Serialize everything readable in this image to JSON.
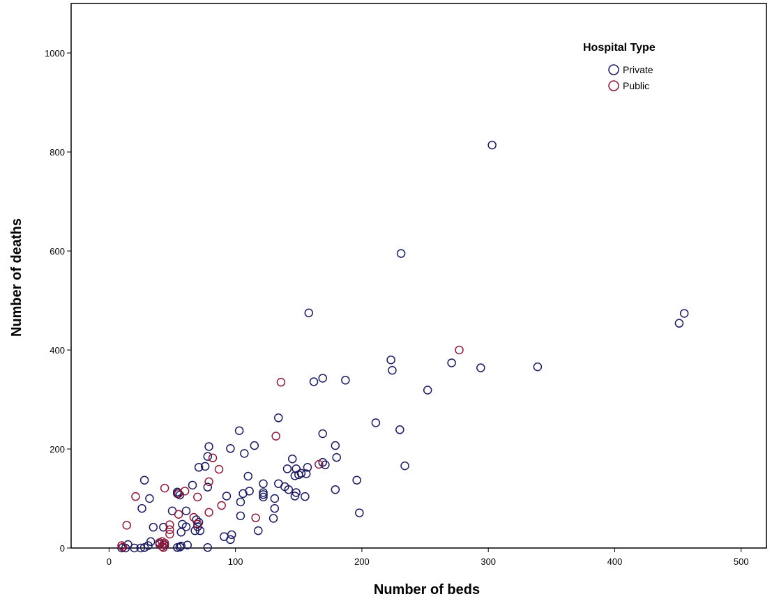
{
  "chart_data": {
    "type": "scatter",
    "title": "",
    "xlabel": "Number of beds",
    "ylabel": "Number of deaths",
    "xlim": [
      -30,
      520
    ],
    "ylim": [
      0,
      1100
    ],
    "x_ticks": [
      0,
      100,
      200,
      300,
      400,
      500
    ],
    "y_ticks": [
      0,
      200,
      400,
      600,
      800,
      1000
    ],
    "grid": false,
    "legend": {
      "title": "Hospital Type",
      "position": "top-right"
    },
    "series": [
      {
        "name": "Private",
        "color": "#1a1a5e",
        "points": [
          [
            303,
            814
          ],
          [
            231,
            595
          ],
          [
            158,
            475
          ],
          [
            455,
            474
          ],
          [
            451,
            454
          ],
          [
            223,
            380
          ],
          [
            271,
            374
          ],
          [
            294,
            364
          ],
          [
            339,
            366
          ],
          [
            224,
            359
          ],
          [
            169,
            343
          ],
          [
            162,
            336
          ],
          [
            187,
            339
          ],
          [
            252,
            319
          ],
          [
            134,
            263
          ],
          [
            211,
            253
          ],
          [
            103,
            237
          ],
          [
            230,
            239
          ],
          [
            169,
            231
          ],
          [
            115,
            207
          ],
          [
            179,
            207
          ],
          [
            79,
            205
          ],
          [
            96,
            201
          ],
          [
            107,
            191
          ],
          [
            78,
            185
          ],
          [
            180,
            183
          ],
          [
            145,
            180
          ],
          [
            71,
            163
          ],
          [
            76,
            165
          ],
          [
            157,
            163
          ],
          [
            141,
            160
          ],
          [
            148,
            160
          ],
          [
            171,
            168
          ],
          [
            169,
            173
          ],
          [
            234,
            166
          ],
          [
            152,
            151
          ],
          [
            150,
            148
          ],
          [
            147,
            146
          ],
          [
            156,
            150
          ],
          [
            110,
            145
          ],
          [
            196,
            137
          ],
          [
            28,
            137
          ],
          [
            66,
            127
          ],
          [
            122,
            130
          ],
          [
            134,
            130
          ],
          [
            139,
            124
          ],
          [
            78,
            123
          ],
          [
            142,
            118
          ],
          [
            179,
            118
          ],
          [
            111,
            115
          ],
          [
            106,
            110
          ],
          [
            122,
            112
          ],
          [
            122,
            108
          ],
          [
            122,
            103
          ],
          [
            148,
            112
          ],
          [
            147,
            105
          ],
          [
            155,
            104
          ],
          [
            131,
            100
          ],
          [
            32,
            100
          ],
          [
            93,
            105
          ],
          [
            104,
            93
          ],
          [
            50,
            75
          ],
          [
            54,
            110
          ],
          [
            54,
            113
          ],
          [
            56,
            107
          ],
          [
            26,
            80
          ],
          [
            131,
            80
          ],
          [
            61,
            75
          ],
          [
            69,
            57
          ],
          [
            71,
            52
          ],
          [
            104,
            65
          ],
          [
            198,
            71
          ],
          [
            130,
            60
          ],
          [
            58,
            48
          ],
          [
            70,
            43
          ],
          [
            35,
            42
          ],
          [
            61,
            43
          ],
          [
            43,
            42
          ],
          [
            68,
            35
          ],
          [
            72,
            35
          ],
          [
            57,
            32
          ],
          [
            118,
            35
          ],
          [
            97,
            27
          ],
          [
            91,
            23
          ],
          [
            96,
            17
          ],
          [
            33,
            13
          ],
          [
            40,
            8
          ],
          [
            44,
            6
          ],
          [
            15,
            7
          ],
          [
            31,
            5
          ],
          [
            57,
            4
          ],
          [
            62,
            6
          ],
          [
            56,
            2
          ],
          [
            78,
            1
          ],
          [
            54,
            1
          ],
          [
            28,
            1
          ],
          [
            25,
            0
          ],
          [
            20,
            0
          ],
          [
            13,
            0
          ],
          [
            10,
            0
          ]
        ]
      },
      {
        "name": "Public",
        "color": "#8b1a3a",
        "points": [
          [
            277,
            400
          ],
          [
            136,
            335
          ],
          [
            132,
            226
          ],
          [
            166,
            169
          ],
          [
            82,
            182
          ],
          [
            87,
            159
          ],
          [
            79,
            134
          ],
          [
            44,
            121
          ],
          [
            21,
            104
          ],
          [
            55,
            110
          ],
          [
            60,
            115
          ],
          [
            70,
            103
          ],
          [
            89,
            86
          ],
          [
            48,
            47
          ],
          [
            67,
            62
          ],
          [
            79,
            72
          ],
          [
            55,
            68
          ],
          [
            116,
            61
          ],
          [
            48,
            37
          ],
          [
            48,
            28
          ],
          [
            14,
            46
          ],
          [
            70,
            48
          ],
          [
            42,
            13
          ],
          [
            40,
            11
          ],
          [
            44,
            10
          ],
          [
            43,
            7
          ],
          [
            42,
            3
          ],
          [
            10,
            5
          ],
          [
            11,
            2
          ],
          [
            43,
            1
          ]
        ]
      }
    ]
  }
}
